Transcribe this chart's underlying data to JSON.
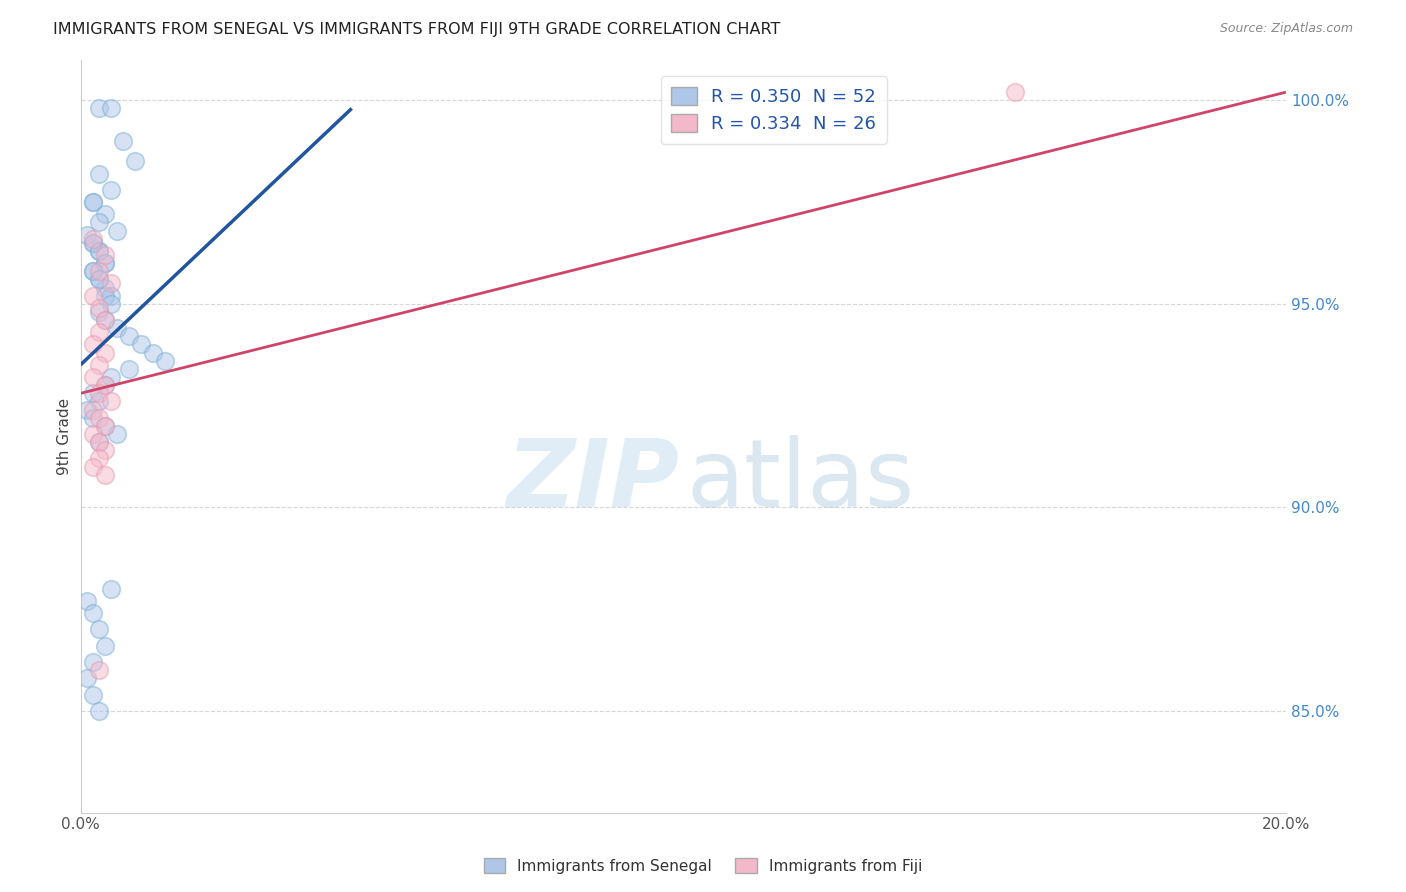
{
  "title": "IMMIGRANTS FROM SENEGAL VS IMMIGRANTS FROM FIJI 9TH GRADE CORRELATION CHART",
  "source": "Source: ZipAtlas.com",
  "ylabel": "9th Grade",
  "xlim": [
    0.0,
    0.2
  ],
  "ylim": [
    0.825,
    1.01
  ],
  "xtick_positions": [
    0.0,
    0.04,
    0.08,
    0.12,
    0.16,
    0.2
  ],
  "xtick_labels": [
    "0.0%",
    "",
    "",
    "",
    "",
    "20.0%"
  ],
  "ytick_values": [
    1.0,
    0.95,
    0.9,
    0.85
  ],
  "ytick_labels": [
    "100.0%",
    "95.0%",
    "90.0%",
    "85.0%"
  ],
  "blue_fill_color": "#aec6e8",
  "blue_edge_color": "#7bafd4",
  "pink_fill_color": "#f4b8cb",
  "pink_edge_color": "#e89ab0",
  "blue_line_color": "#2255a0",
  "pink_line_color": "#d04468",
  "blue_line_x0": 0.0,
  "blue_line_x1": 0.045,
  "blue_line_y0": 0.935,
  "blue_line_y1": 0.998,
  "pink_line_x0": 0.0,
  "pink_line_x1": 0.2,
  "pink_line_y0": 0.928,
  "pink_line_y1": 1.002,
  "legend_blue_label": "R = 0.350  N = 52",
  "legend_pink_label": "R = 0.334  N = 26",
  "bottom_legend_blue": "Immigrants from Senegal",
  "bottom_legend_pink": "Immigrants from Fiji",
  "watermark_zip": "ZIP",
  "watermark_atlas": "atlas",
  "title_fontsize": 11.5,
  "source_fontsize": 9,
  "legend_fontsize": 13,
  "axis_label_fontsize": 11,
  "background_color": "#ffffff",
  "grid_color": "#cccccc",
  "scatter_size": 160,
  "scatter_alpha": 0.5,
  "senegal_points_x": [
    0.003,
    0.005,
    0.007,
    0.009,
    0.003,
    0.005,
    0.002,
    0.004,
    0.006,
    0.002,
    0.003,
    0.004,
    0.002,
    0.003,
    0.004,
    0.005,
    0.002,
    0.003,
    0.001,
    0.002,
    0.003,
    0.004,
    0.002,
    0.003,
    0.004,
    0.005,
    0.003,
    0.004,
    0.006,
    0.008,
    0.01,
    0.012,
    0.014,
    0.008,
    0.005,
    0.004,
    0.002,
    0.003,
    0.001,
    0.002,
    0.004,
    0.006,
    0.003,
    0.005,
    0.001,
    0.002,
    0.003,
    0.004,
    0.002,
    0.001,
    0.002,
    0.003
  ],
  "senegal_points_y": [
    0.998,
    0.998,
    0.99,
    0.985,
    0.982,
    0.978,
    0.975,
    0.972,
    0.968,
    0.965,
    0.963,
    0.96,
    0.958,
    0.956,
    0.954,
    0.952,
    0.975,
    0.97,
    0.967,
    0.965,
    0.963,
    0.96,
    0.958,
    0.956,
    0.952,
    0.95,
    0.948,
    0.946,
    0.944,
    0.942,
    0.94,
    0.938,
    0.936,
    0.934,
    0.932,
    0.93,
    0.928,
    0.926,
    0.924,
    0.922,
    0.92,
    0.918,
    0.916,
    0.88,
    0.877,
    0.874,
    0.87,
    0.866,
    0.862,
    0.858,
    0.854,
    0.85
  ],
  "fiji_points_x": [
    0.002,
    0.004,
    0.003,
    0.005,
    0.002,
    0.003,
    0.004,
    0.003,
    0.002,
    0.004,
    0.003,
    0.002,
    0.004,
    0.003,
    0.005,
    0.002,
    0.003,
    0.004,
    0.002,
    0.003,
    0.004,
    0.003,
    0.002,
    0.004,
    0.003,
    0.155
  ],
  "fiji_points_y": [
    0.966,
    0.962,
    0.958,
    0.955,
    0.952,
    0.949,
    0.946,
    0.943,
    0.94,
    0.938,
    0.935,
    0.932,
    0.93,
    0.928,
    0.926,
    0.924,
    0.922,
    0.92,
    0.918,
    0.916,
    0.914,
    0.912,
    0.91,
    0.908,
    0.86,
    1.002
  ]
}
